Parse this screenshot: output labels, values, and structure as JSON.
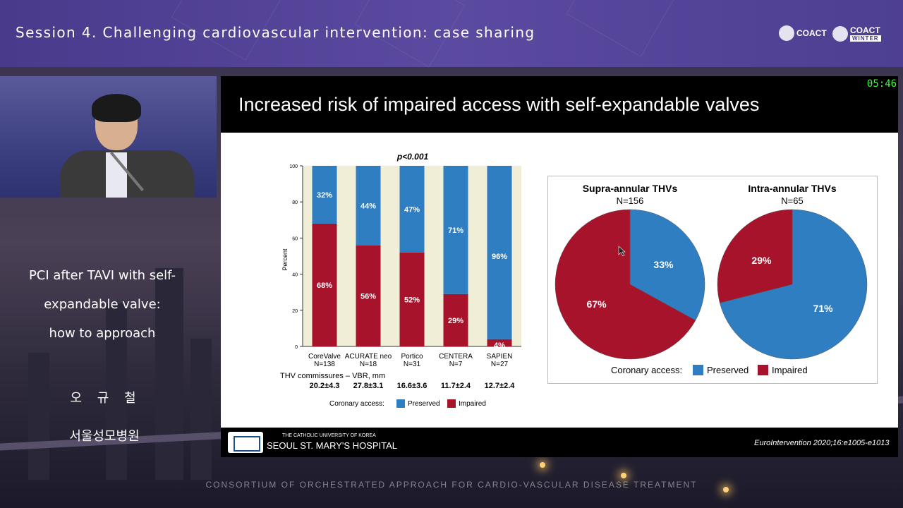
{
  "header": {
    "session_title": "Session 4. Challenging cardiovascular intervention: case sharing",
    "logo1": "COACT",
    "logo2": "COACT",
    "logo2_sub": "WINTER"
  },
  "sidebar": {
    "talk_title_lines": [
      "PCI after TAVI with self-",
      "expandable valve:",
      "how to approach"
    ],
    "speaker_name": "오 규 철",
    "hospital": "서울성모병원"
  },
  "footer": {
    "consortium": "CONSORTIUM OF ORCHESTRATED APPROACH FOR CARDIO-VASCULAR DISEASE TREATMENT"
  },
  "timer": "05:46",
  "slide": {
    "title": "Increased risk of impaired access with self-expandable valves",
    "hospital_small": "THE CATHOLIC UNIVERSITY OF KOREA",
    "hospital_big": "SEOUL ST. MARY'S HOSPITAL",
    "citation": "EuroIntervention 2020;16:e1005-e1013"
  },
  "colors": {
    "preserved": "#2f7ec1",
    "impaired": "#a8132c",
    "bar_background": "#f1eed8"
  },
  "chart_data": [
    {
      "type": "bar",
      "stacked": true,
      "title": "p<0.001",
      "ylabel": "Percent",
      "ylim": [
        0,
        100
      ],
      "yticks": [
        0,
        20,
        40,
        60,
        80,
        100
      ],
      "categories": [
        "CoreValve",
        "ACURATE neo",
        "Portico",
        "CENTERA",
        "SAPIEN"
      ],
      "category_n": [
        "N=138",
        "N=18",
        "N=31",
        "N=7",
        "N=27"
      ],
      "series": [
        {
          "name": "Impaired",
          "values": [
            68,
            56,
            52,
            29,
            4
          ],
          "labels": [
            "68%",
            "56%",
            "52%",
            "29%",
            "4%"
          ]
        },
        {
          "name": "Preserved",
          "values": [
            32,
            44,
            47,
            71,
            96
          ],
          "labels": [
            "32%",
            "44%",
            "47%",
            "71%",
            "96%"
          ]
        }
      ],
      "vbr_label": "THV commissures – VBR, mm",
      "vbr_values": [
        "20.2±4.3",
        "27.8±3.1",
        "16.6±3.6",
        "11.7±2.4",
        "12.7±2.4"
      ],
      "legend_title": "Coronary access:",
      "legend_placement": "bottom"
    },
    {
      "type": "pie",
      "charts": [
        {
          "title": "Supra-annular THVs",
          "n": "N=156",
          "slices": [
            {
              "name": "Preserved",
              "value": 33,
              "label": "33%"
            },
            {
              "name": "Impaired",
              "value": 67,
              "label": "67%"
            }
          ]
        },
        {
          "title": "Intra-annular THVs",
          "n": "N=65",
          "slices": [
            {
              "name": "Preserved",
              "value": 71,
              "label": "71%"
            },
            {
              "name": "Impaired",
              "value": 29,
              "label": "29%"
            }
          ]
        }
      ],
      "legend_title": "Coronary access:",
      "legend": [
        "Preserved",
        "Impaired"
      ],
      "legend_placement": "bottom"
    }
  ]
}
